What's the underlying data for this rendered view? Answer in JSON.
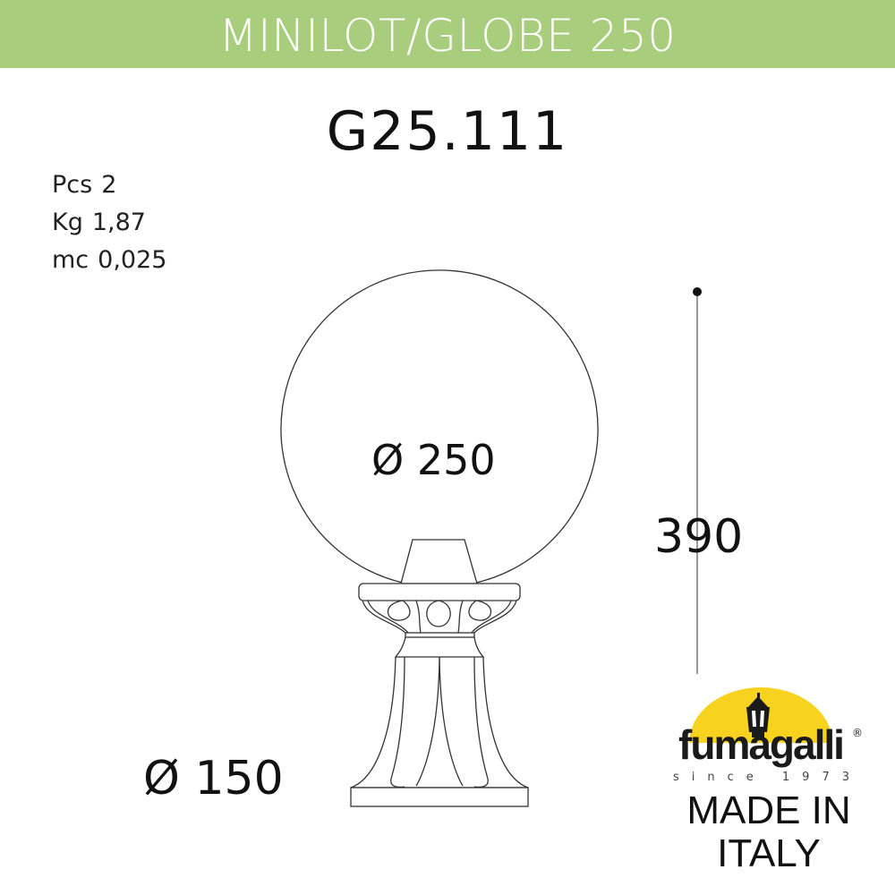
{
  "header": {
    "title": "MINILOT/GLOBE 250",
    "background_color": "#a8cd7c"
  },
  "product_code": "G25.111",
  "specs": [
    {
      "label": "Pcs",
      "value": "2"
    },
    {
      "label": "Kg",
      "value": "1,87"
    },
    {
      "label": "mc",
      "value": "0,025"
    }
  ],
  "dimensions": {
    "globe_diameter": "Ø 250",
    "base_diameter": "Ø 150",
    "height": "390"
  },
  "logo": {
    "brand": "fumagalli",
    "registered": "®",
    "tagline": "since 1973",
    "accent_color": "#f7d21e"
  },
  "origin": {
    "line1": "MADE IN",
    "line2": "ITALY"
  }
}
